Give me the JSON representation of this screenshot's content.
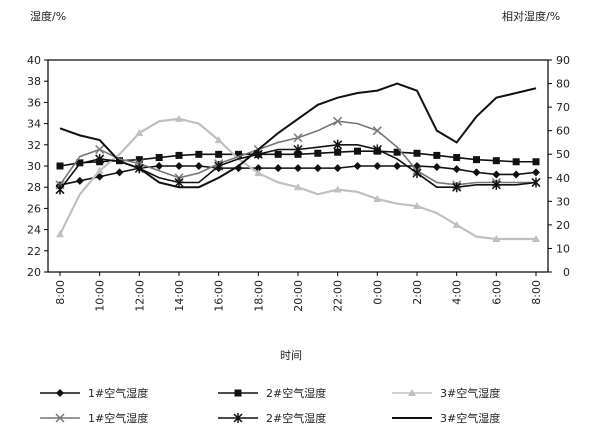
{
  "chart_data": {
    "type": "line",
    "left_axis_title": "湿度/%",
    "right_axis_title": "相对湿度/%",
    "x_axis_title": "时间",
    "categories": [
      "8:00",
      "10:00",
      "12:00",
      "14:00",
      "16:00",
      "18:00",
      "20:00",
      "22:00",
      "0:00",
      "2:00",
      "4:00",
      "6:00",
      "8:00"
    ],
    "left_ylim": [
      20,
      40
    ],
    "left_yticks": [
      20,
      22,
      24,
      26,
      28,
      30,
      32,
      34,
      36,
      38,
      40
    ],
    "right_ylim": [
      0,
      90
    ],
    "right_yticks": [
      0,
      10,
      20,
      30,
      40,
      50,
      60,
      70,
      80,
      90
    ],
    "grid": false,
    "legend_position": "bottom",
    "series": [
      {
        "name": "1#空气湿度",
        "axis": "left",
        "marker": "diamond",
        "color": "#111111",
        "x": [
          0,
          0.5,
          1,
          1.5,
          2,
          2.5,
          3,
          3.5,
          4,
          4.5,
          5,
          5.5,
          6,
          6.5,
          7,
          7.5,
          8,
          8.5,
          9,
          9.5,
          10,
          10.5,
          11,
          11.5,
          12
        ],
        "values": [
          28.2,
          28.6,
          29.0,
          29.4,
          29.8,
          30.0,
          30.0,
          30.0,
          29.8,
          29.8,
          29.8,
          29.8,
          29.8,
          29.8,
          29.8,
          30.0,
          30.0,
          30.0,
          30.0,
          29.9,
          29.7,
          29.4,
          29.2,
          29.2,
          29.4
        ]
      },
      {
        "name": "2#空气湿度",
        "axis": "left",
        "marker": "square",
        "color": "#111111",
        "x": [
          0,
          0.5,
          1,
          1.5,
          2,
          2.5,
          3,
          3.5,
          4,
          4.5,
          5,
          5.5,
          6,
          6.5,
          7,
          7.5,
          8,
          8.5,
          9,
          9.5,
          10,
          10.5,
          11,
          11.5,
          12
        ],
        "values": [
          30.0,
          30.3,
          30.4,
          30.5,
          30.6,
          30.8,
          31.0,
          31.1,
          31.1,
          31.1,
          31.1,
          31.1,
          31.1,
          31.2,
          31.3,
          31.4,
          31.4,
          31.3,
          31.2,
          31.0,
          30.8,
          30.6,
          30.5,
          30.4,
          30.4
        ]
      },
      {
        "name": "3#空气湿度",
        "axis": "right",
        "marker": "triangle",
        "color": "#c0c0c0",
        "x": [
          0,
          0.5,
          1,
          1.5,
          2,
          2.5,
          3,
          3.5,
          4,
          4.5,
          5,
          5.5,
          6,
          6.5,
          7,
          7.5,
          8,
          8.5,
          9,
          9.5,
          10,
          10.5,
          11,
          11.5,
          12
        ],
        "values": [
          16,
          33,
          43,
          50,
          59,
          64,
          65,
          63,
          56,
          48,
          42,
          38,
          36,
          33,
          35,
          34,
          31,
          29,
          28,
          25,
          20,
          15,
          14,
          14,
          14
        ]
      },
      {
        "name": "1#空气湿度",
        "axis": "right",
        "marker": "x",
        "color": "#777777",
        "x": [
          0,
          0.5,
          1,
          1.5,
          2,
          2.5,
          3,
          3.5,
          4,
          4.5,
          5,
          5.5,
          6,
          6.5,
          7,
          7.5,
          8,
          8.5,
          9,
          9.5,
          10,
          10.5,
          11,
          11.5,
          12
        ],
        "values": [
          37,
          49,
          52,
          48,
          46,
          43,
          40,
          42,
          46,
          49,
          52,
          55,
          57,
          60,
          64,
          63,
          60,
          53,
          43,
          38,
          37,
          38,
          38,
          38,
          38
        ]
      },
      {
        "name": "2#空气湿度",
        "axis": "right",
        "marker": "star",
        "color": "#111111",
        "x": [
          0,
          0.5,
          1,
          1.5,
          2,
          2.5,
          3,
          3.5,
          4,
          4.5,
          5,
          5.5,
          6,
          6.5,
          7,
          7.5,
          8,
          8.5,
          9,
          9.5,
          10,
          10.5,
          11,
          11.5,
          12
        ],
        "values": [
          35,
          46,
          48,
          47,
          44,
          40,
          38,
          38,
          45,
          48,
          50,
          52,
          52,
          53,
          54,
          54,
          52,
          48,
          42,
          36,
          36,
          37,
          37,
          37,
          38
        ]
      },
      {
        "name": "3#空气湿度",
        "axis": "right",
        "marker": "none",
        "color": "#111111",
        "x": [
          0,
          0.5,
          1,
          1.5,
          2,
          2.5,
          3,
          3.5,
          4,
          4.5,
          5,
          5.5,
          6,
          6.5,
          7,
          7.5,
          8,
          8.5,
          9,
          9.5,
          10,
          10.5,
          11,
          11.5,
          12
        ],
        "values": [
          61,
          58,
          56,
          47,
          44,
          38,
          36,
          36,
          40,
          45,
          52,
          59,
          65,
          71,
          74,
          76,
          77,
          80,
          77,
          60,
          55,
          66,
          74,
          76,
          78
        ]
      }
    ]
  }
}
